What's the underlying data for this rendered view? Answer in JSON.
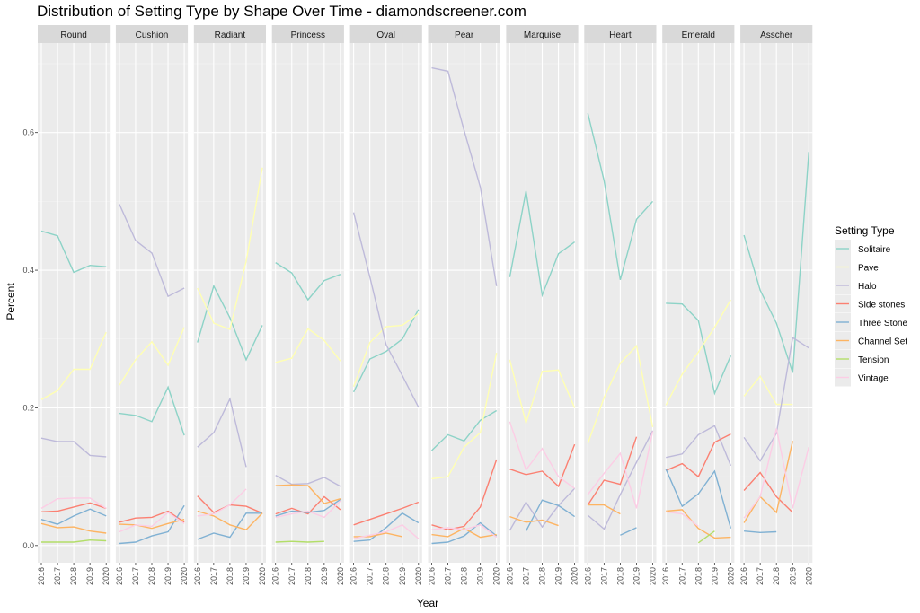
{
  "chart_data": {
    "type": "line",
    "title": "Distribution of Setting Type by Shape Over Time - diamondscreener.com",
    "xlabel": "Year",
    "ylabel": "Percent",
    "x": [
      2016,
      2017,
      2018,
      2019,
      2020
    ],
    "ylim": [
      -0.025,
      0.73
    ],
    "y_ticks": [
      0.0,
      0.2,
      0.4,
      0.6
    ],
    "y_tick_labels": [
      "0.0",
      "0.2",
      "0.4",
      "0.6"
    ],
    "x_tick_labels": [
      "2016",
      "2017",
      "2018",
      "2019",
      "2020"
    ],
    "legend": {
      "title": "Setting Type",
      "position": "right",
      "entries": [
        "Solitaire",
        "Pave",
        "Halo",
        "Side stones",
        "Three Stone",
        "Channel Set",
        "Tension",
        "Vintage"
      ]
    },
    "colors": {
      "Solitaire": "#8dd3c7",
      "Pave": "#ffffb3",
      "Halo": "#bebada",
      "Side stones": "#fb8072",
      "Three Stone": "#80b1d3",
      "Channel Set": "#fdb462",
      "Tension": "#b3de69",
      "Vintage": "#fccde5"
    },
    "panels": [
      {
        "name": "Round",
        "series": {
          "Solitaire": [
            0.457,
            0.45,
            0.397,
            0.407,
            0.405
          ],
          "Pave": [
            0.212,
            0.225,
            0.256,
            0.256,
            0.31
          ],
          "Halo": [
            0.156,
            0.151,
            0.151,
            0.131,
            0.129
          ],
          "Side stones": [
            0.049,
            0.05,
            0.056,
            0.062,
            0.054
          ],
          "Three Stone": [
            0.038,
            0.031,
            0.043,
            0.053,
            0.043
          ],
          "Channel Set": [
            0.032,
            0.026,
            0.027,
            0.021,
            0.018
          ],
          "Tension": [
            0.005,
            0.005,
            0.005,
            0.008,
            0.007
          ],
          "Vintage": [
            0.054,
            0.068,
            0.069,
            0.069,
            0.054
          ]
        }
      },
      {
        "name": "Cushion",
        "series": {
          "Solitaire": [
            0.192,
            0.189,
            0.18,
            0.23,
            0.16
          ],
          "Pave": [
            0.233,
            0.27,
            0.296,
            0.262,
            0.317
          ],
          "Halo": [
            0.496,
            0.443,
            0.425,
            0.362,
            0.374
          ],
          "Side stones": [
            0.034,
            0.04,
            0.041,
            0.05,
            0.034
          ],
          "Three Stone": [
            0.003,
            0.005,
            0.014,
            0.02,
            0.058
          ],
          "Channel Set": [
            0.031,
            0.03,
            0.025,
            0.032,
            0.038
          ],
          "Tension": [
            null,
            null,
            null,
            null,
            null
          ],
          "Vintage": [
            0.02,
            0.03,
            0.028,
            0.048,
            0.032
          ]
        }
      },
      {
        "name": "Radiant",
        "series": {
          "Solitaire": [
            0.295,
            0.377,
            0.331,
            0.27,
            0.32
          ],
          "Pave": [
            0.374,
            0.323,
            0.314,
            0.413,
            0.549
          ],
          "Halo": [
            0.143,
            0.164,
            0.213,
            0.114,
            null
          ],
          "Side stones": [
            0.072,
            0.048,
            0.059,
            0.057,
            0.047
          ],
          "Three Stone": [
            0.009,
            0.018,
            0.012,
            0.047,
            0.047
          ],
          "Channel Set": [
            0.05,
            0.043,
            0.03,
            0.023,
            0.047
          ],
          "Tension": [
            null,
            null,
            null,
            null,
            null
          ],
          "Vintage": [
            0.043,
            0.046,
            0.059,
            0.082,
            null
          ]
        }
      },
      {
        "name": "Princess",
        "series": {
          "Solitaire": [
            0.411,
            0.396,
            0.357,
            0.385,
            0.394
          ],
          "Pave": [
            0.266,
            0.272,
            0.315,
            0.298,
            0.268
          ],
          "Halo": [
            0.102,
            0.089,
            0.09,
            0.099,
            0.086
          ],
          "Side stones": [
            0.046,
            0.054,
            0.046,
            0.071,
            0.052
          ],
          "Three Stone": [
            0.043,
            0.05,
            0.048,
            0.051,
            0.067
          ],
          "Channel Set": [
            0.087,
            0.088,
            0.087,
            0.061,
            0.068
          ],
          "Tension": [
            0.005,
            0.006,
            0.005,
            0.006,
            null
          ],
          "Vintage": [
            0.041,
            0.046,
            0.05,
            0.041,
            0.065
          ]
        }
      },
      {
        "name": "Oval",
        "series": {
          "Solitaire": [
            0.223,
            0.271,
            0.282,
            0.3,
            0.343
          ],
          "Pave": [
            0.231,
            0.295,
            0.318,
            0.32,
            0.337
          ],
          "Halo": [
            0.484,
            0.39,
            0.292,
            0.247,
            0.201
          ],
          "Side stones": [
            0.03,
            0.038,
            0.046,
            0.054,
            0.063
          ],
          "Three Stone": [
            0.006,
            0.008,
            0.026,
            0.047,
            0.033
          ],
          "Channel Set": [
            0.013,
            0.013,
            0.018,
            0.013,
            null
          ],
          "Tension": [
            null,
            null,
            null,
            null,
            null
          ],
          "Vintage": [
            0.01,
            0.015,
            0.02,
            0.03,
            0.01
          ]
        }
      },
      {
        "name": "Pear",
        "series": {
          "Solitaire": [
            0.138,
            0.161,
            0.152,
            0.182,
            0.196
          ],
          "Pave": [
            0.097,
            0.1,
            0.143,
            0.164,
            0.28
          ],
          "Halo": [
            0.694,
            0.689,
            0.603,
            0.521,
            0.377
          ],
          "Side stones": [
            0.03,
            0.023,
            0.028,
            0.056,
            0.125
          ],
          "Three Stone": [
            0.003,
            0.005,
            0.014,
            0.033,
            0.014
          ],
          "Channel Set": [
            0.016,
            0.013,
            0.025,
            0.012,
            0.016
          ],
          "Tension": [
            null,
            null,
            null,
            null,
            null
          ],
          "Vintage": [
            0.023,
            0.026,
            0.023,
            0.03,
            0.012
          ]
        }
      },
      {
        "name": "Marquise",
        "series": {
          "Solitaire": [
            0.39,
            0.515,
            0.364,
            0.424,
            0.441
          ],
          "Pave": [
            0.27,
            0.178,
            0.253,
            0.255,
            0.2
          ],
          "Halo": [
            0.022,
            0.063,
            0.027,
            0.058,
            0.083
          ],
          "Side stones": [
            0.111,
            0.103,
            0.108,
            0.086,
            0.147
          ],
          "Three Stone": [
            null,
            0.021,
            0.066,
            0.058,
            0.042
          ],
          "Channel Set": [
            0.042,
            0.034,
            0.037,
            0.029,
            null
          ],
          "Tension": [
            null,
            null,
            null,
            null,
            null
          ],
          "Vintage": [
            0.18,
            0.11,
            0.141,
            0.1,
            0.083
          ]
        }
      },
      {
        "name": "Heart",
        "series": {
          "Solitaire": [
            0.628,
            0.53,
            0.386,
            0.474,
            0.5
          ],
          "Pave": [
            0.148,
            0.215,
            0.265,
            0.29,
            0.172
          ],
          "Halo": [
            0.044,
            0.024,
            0.074,
            0.121,
            0.167
          ],
          "Side stones": [
            0.059,
            0.095,
            0.089,
            0.158,
            null
          ],
          "Three Stone": [
            null,
            null,
            0.015,
            0.026,
            null
          ],
          "Channel Set": [
            0.059,
            0.059,
            0.046,
            null,
            null
          ],
          "Tension": [
            null,
            null,
            null,
            null,
            null
          ],
          "Vintage": [
            0.074,
            0.105,
            0.134,
            0.054,
            0.166
          ]
        }
      },
      {
        "name": "Emerald",
        "series": {
          "Solitaire": [
            0.352,
            0.351,
            0.327,
            0.221,
            0.276
          ],
          "Pave": [
            0.204,
            0.249,
            0.281,
            0.317,
            0.357
          ],
          "Halo": [
            0.128,
            0.133,
            0.161,
            0.174,
            0.116
          ],
          "Side stones": [
            0.109,
            0.119,
            0.1,
            0.15,
            0.162
          ],
          "Three Stone": [
            0.111,
            0.057,
            0.075,
            0.108,
            0.025
          ],
          "Channel Set": [
            0.05,
            0.052,
            0.025,
            0.011,
            0.012
          ],
          "Tension": [
            null,
            null,
            0.004,
            0.021,
            null
          ],
          "Vintage": [
            0.049,
            0.046,
            0.028,
            null,
            null
          ]
        }
      },
      {
        "name": "Asscher",
        "series": {
          "Solitaire": [
            0.451,
            0.371,
            0.323,
            0.251,
            0.572
          ],
          "Pave": [
            0.217,
            0.246,
            0.205,
            0.205,
            null
          ],
          "Halo": [
            0.157,
            0.123,
            0.163,
            0.302,
            0.287
          ],
          "Side stones": [
            0.08,
            0.106,
            0.071,
            0.048,
            null
          ],
          "Three Stone": [
            0.021,
            0.019,
            0.02,
            null,
            null
          ],
          "Channel Set": [
            0.033,
            0.071,
            0.048,
            0.152,
            null
          ],
          "Tension": [
            null,
            null,
            null,
            null,
            null
          ],
          "Vintage": [
            0.04,
            0.071,
            0.17,
            0.054,
            0.143
          ]
        }
      }
    ]
  }
}
